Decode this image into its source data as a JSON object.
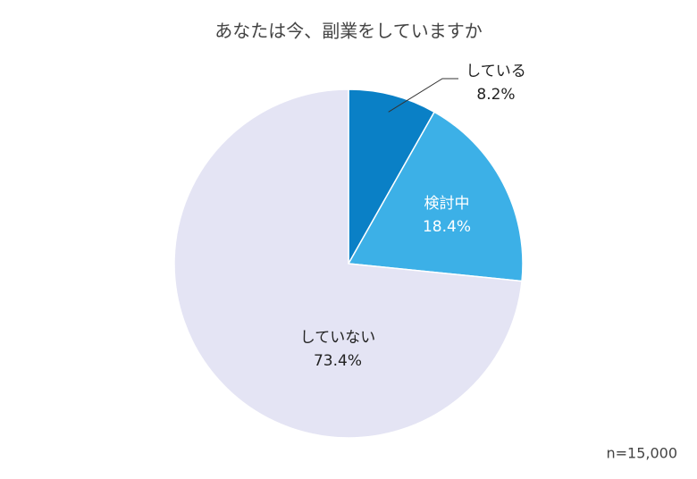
{
  "chart_data": {
    "type": "pie",
    "title": "あなたは今、副業をしていますか",
    "categories": [
      "している",
      "検討中",
      "していない"
    ],
    "values": [
      8.2,
      18.4,
      73.4
    ],
    "value_labels": [
      "8.2%",
      "18.4%",
      "73.4%"
    ],
    "colors": [
      "#0a80c6",
      "#3cb0e7",
      "#e4e4f4"
    ],
    "note": "n=15,000"
  }
}
